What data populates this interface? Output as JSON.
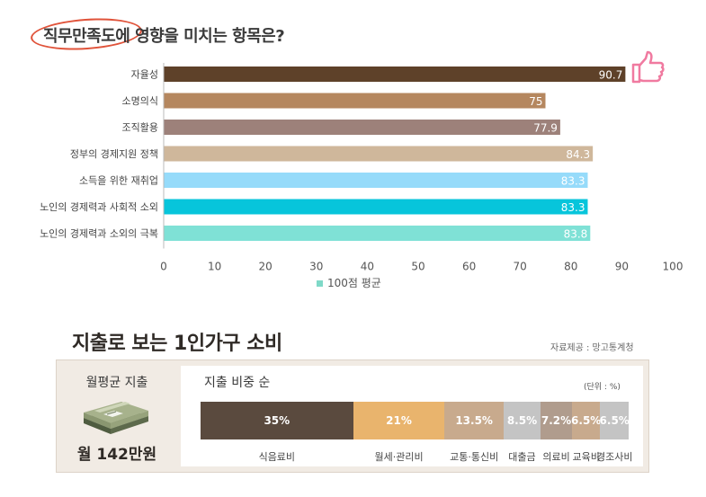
{
  "chart1": {
    "title": "직무만족도에 영향을 미치는 항목은?",
    "legend": "100점 평균",
    "colors": {
      "legend": "#7fd9c8",
      "highlight_circle": "#e0533a",
      "thumb": "#f07aa0"
    }
  },
  "chart2": {
    "title": "지출로 보는 1인가구 소비",
    "source": "자료제공 : 망고통계청",
    "monthly_label": "월평균 지출",
    "monthly_value": "월 142만원",
    "ratio_title": "지출 비중 순",
    "unit_note": "(단위 : %)"
  },
  "chart_data": [
    {
      "type": "bar",
      "orientation": "horizontal",
      "title": "직무만족도에 영향을 미치는 항목은?",
      "categories": [
        "자율성",
        "소명의식",
        "조직활용",
        "정부의 경제지원 정책",
        "소득을 위한 재취업",
        "노인의 경제력과 사회적 소외",
        "노인의 경제력과 소외의 극복"
      ],
      "values": [
        90.7,
        75,
        77.9,
        84.3,
        83.3,
        83.3,
        83.8
      ],
      "value_labels": [
        "90.7",
        "75",
        "77.9",
        "84.3",
        "83.3",
        "83.3",
        "83.8"
      ],
      "colors": [
        "#5e4129",
        "#b5875f",
        "#9d817a",
        "#cfb79b",
        "#96dbfa",
        "#07c5db",
        "#7fe1d6"
      ],
      "xlim": [
        0,
        100
      ],
      "xticks": [
        "0",
        "10",
        "20",
        "30",
        "40",
        "50",
        "60",
        "70",
        "80",
        "90",
        "100"
      ],
      "legend": "100점 평균",
      "grid": false
    },
    {
      "type": "bar",
      "orientation": "stacked-horizontal",
      "title": "지출 비중 순",
      "categories": [
        "식음료비",
        "월세·관리비",
        "교통·통신비",
        "대출금",
        "의료비",
        "교육비",
        "경조사비"
      ],
      "values": [
        35,
        21,
        13.5,
        8.5,
        7.2,
        6.5,
        6.5
      ],
      "value_labels": [
        "35%",
        "21%",
        "13.5%",
        "8.5%",
        "7.2%",
        "6.5%",
        "6.5%"
      ],
      "colors": [
        "#5a4a3e",
        "#e9b46d",
        "#c8aa8d",
        "#c4c4c4",
        "#b09c8d",
        "#c8aa8d",
        "#c4c4c4"
      ],
      "unit": "%"
    }
  ]
}
